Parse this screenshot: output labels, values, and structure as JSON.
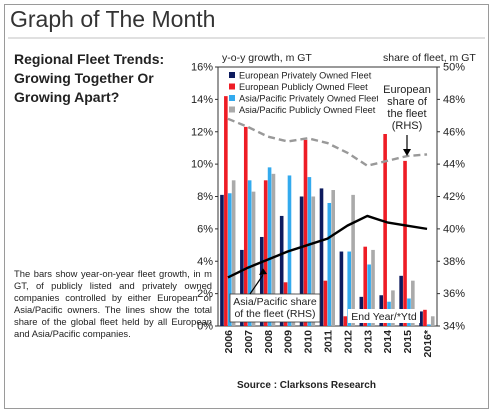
{
  "header": {
    "title": "Graph of The Month"
  },
  "subtitle": "Regional Fleet Trends: Growing Together Or Growing Apart?",
  "description": "The bars show year-on-year fleet growth, in m GT, of publicly listed and privately owned companies controlled by either European or Asia/Pacific owners. The lines show the total share of the global fleet held by all European and Asia/Pacific companies.",
  "source": "Source : Clarksons Research",
  "chart_data": {
    "type": "bar",
    "ylabel_left": "y-o-y growth, m GT",
    "ylabel_right": "share of fleet, m GT",
    "left_axis": {
      "min": 0,
      "max": 16,
      "ticks": [
        "0%",
        "2%",
        "4%",
        "6%",
        "8%",
        "10%",
        "12%",
        "14%",
        "16%"
      ]
    },
    "right_axis": {
      "min": 34,
      "max": 50,
      "ticks": [
        "34%",
        "36%",
        "38%",
        "40%",
        "42%",
        "44%",
        "46%",
        "48%",
        "50%"
      ]
    },
    "categories": [
      "2006",
      "2007",
      "2008",
      "2009",
      "2010",
      "2011",
      "2012",
      "2013",
      "2014",
      "2015",
      "2016*"
    ],
    "series": [
      {
        "name": "European Privately Owned Fleet",
        "color": "#0d1b5e",
        "values": [
          8.1,
          4.7,
          5.5,
          6.8,
          8.0,
          8.5,
          4.6,
          1.8,
          1.9,
          3.1,
          0.9
        ]
      },
      {
        "name": "European Publicly Owned Fleet",
        "color": "#ee1c25",
        "values": [
          14.2,
          12.3,
          9.0,
          2.7,
          11.5,
          2.8,
          0.6,
          4.9,
          14.9,
          10.2,
          1.0
        ]
      },
      {
        "name": "Asia/Pacific Privately Owned Fleet",
        "color": "#33aaee",
        "values": [
          8.2,
          9.0,
          9.8,
          9.3,
          9.2,
          7.6,
          4.6,
          3.8,
          1.5,
          1.7,
          0.1
        ]
      },
      {
        "name": "Asia/Pacific Publicly Owned Fleet",
        "color": "#aaaaaa",
        "values": [
          9.0,
          8.3,
          9.4,
          2.0,
          8.0,
          8.4,
          8.1,
          4.7,
          2.2,
          2.8,
          0.6
        ]
      }
    ],
    "lines": [
      {
        "name": "European share of the fleet (RHS)",
        "style": "dashed",
        "color": "#999999",
        "values": [
          46.8,
          46.3,
          45.7,
          45.4,
          45.6,
          45.3,
          44.7,
          43.9,
          44.2,
          44.5,
          44.6
        ]
      },
      {
        "name": "Asia/Pacific share of the fleet (RHS)",
        "style": "solid",
        "color": "#000000",
        "values": [
          37.0,
          37.6,
          38.1,
          38.6,
          39.0,
          39.4,
          40.2,
          40.8,
          40.4,
          40.2,
          40.0
        ]
      }
    ],
    "annotations": {
      "european": [
        "European",
        "share of",
        "the fleet",
        "(RHS)"
      ],
      "asia": [
        "Asia/Pacific share",
        "of the fleet (RHS)"
      ],
      "note": "End Year/*Ytd"
    }
  }
}
